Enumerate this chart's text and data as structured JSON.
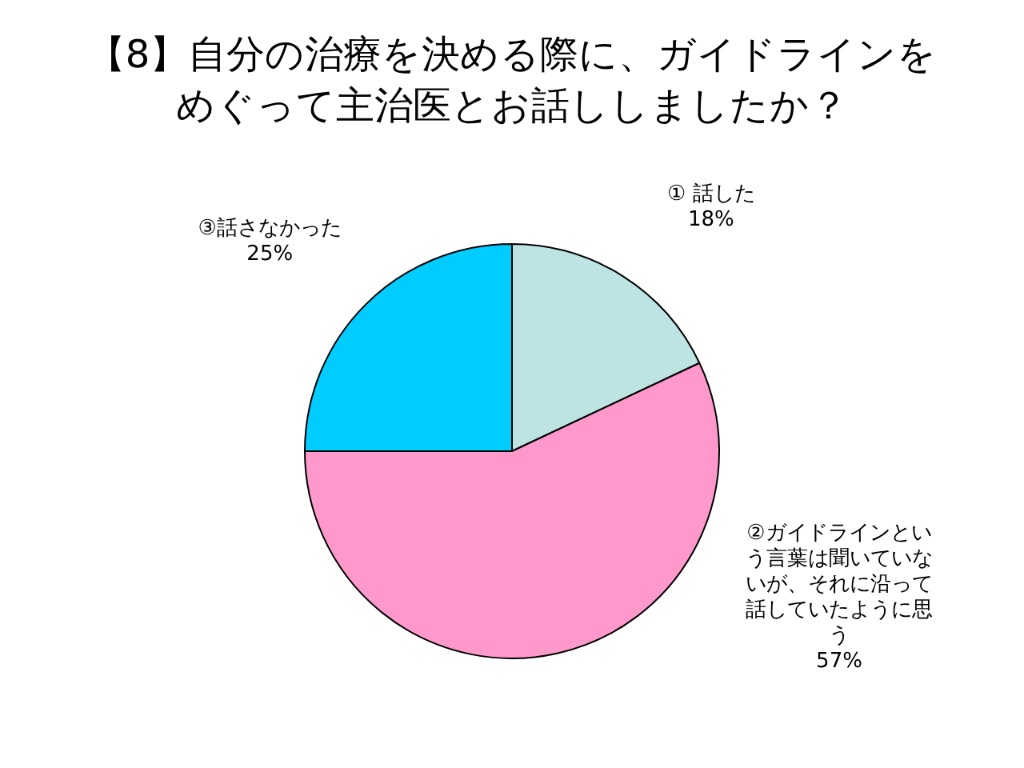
{
  "chart_data": {
    "type": "pie",
    "title": "【8】自分の治療を決める際に、ガイドラインをめぐって主治医とお話ししましたか？",
    "categories": [
      "① 話した",
      "②ガイドラインという言葉は聞いていないが、それに沿って話していたように思う",
      "③話さなかった"
    ],
    "values": [
      18,
      57,
      25
    ],
    "value_labels": [
      "18%",
      "57%",
      "25%"
    ],
    "colors": [
      "#bde3e3",
      "#ff99cc",
      "#00ccff"
    ],
    "legend": false
  }
}
